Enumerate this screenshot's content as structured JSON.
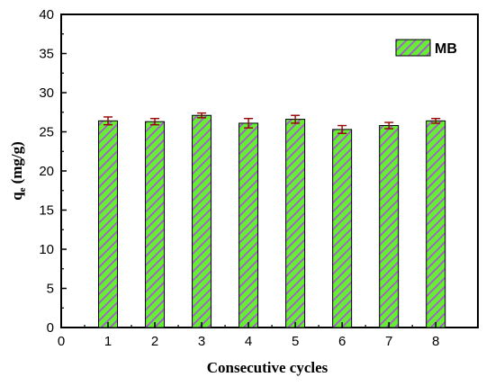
{
  "chart_data": {
    "type": "bar",
    "xlabel": "Consecutive cycles",
    "ylabel_main": "q",
    "ylabel_sub": "e",
    "ylabel_unit": "(mg/g)",
    "xlim": [
      0,
      8.9
    ],
    "ylim": [
      0,
      40
    ],
    "x_ticks": [
      "0",
      "1",
      "2",
      "3",
      "4",
      "5",
      "6",
      "7",
      "8"
    ],
    "y_ticks": [
      "0",
      "5",
      "10",
      "15",
      "20",
      "25",
      "30",
      "35",
      "40"
    ],
    "categories": [
      "1",
      "2",
      "3",
      "4",
      "5",
      "6",
      "7",
      "8"
    ],
    "series": [
      {
        "name": "MB",
        "values": [
          26.4,
          26.3,
          27.1,
          26.1,
          26.6,
          25.3,
          25.8,
          26.4
        ],
        "errors": [
          0.5,
          0.4,
          0.3,
          0.6,
          0.5,
          0.5,
          0.4,
          0.3
        ]
      }
    ],
    "legend_position": "top-right",
    "grid": false,
    "colors": {
      "bar_fill": "#66ee33",
      "hatch": "#a855d8",
      "error_bar": "#990000",
      "axis": "#000000"
    }
  }
}
